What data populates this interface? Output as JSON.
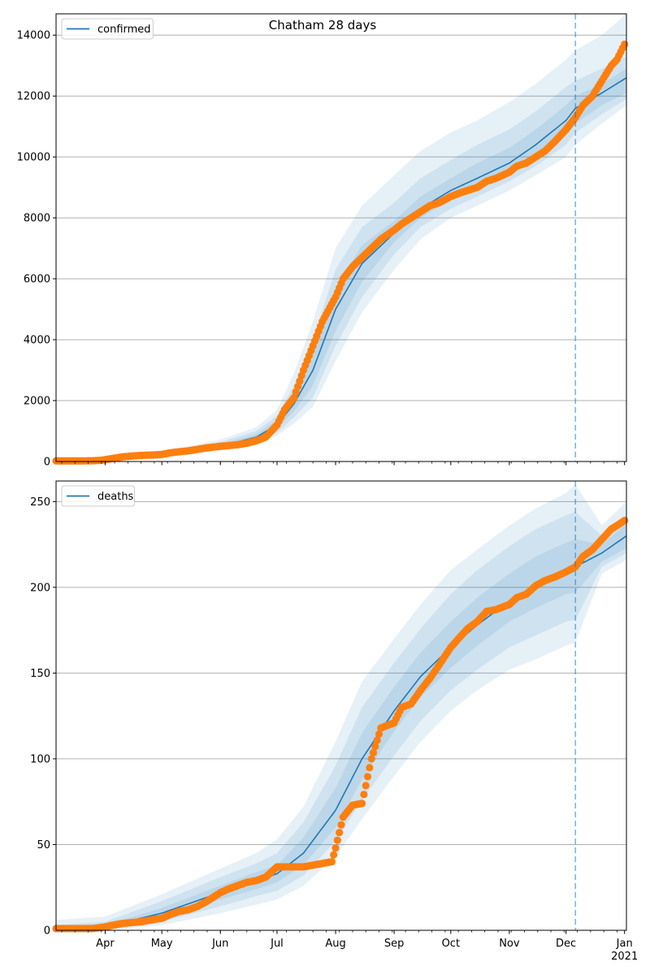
{
  "colors": {
    "model_line": "#1f77b4",
    "observed": "#ff7f0e",
    "band": "#1f77b4",
    "grid": "#b0b0b0",
    "forecast_marker": "#1f77b4"
  },
  "chart_data": [
    {
      "type": "line",
      "title": "Chatham 28 days",
      "legend": {
        "label": "confirmed",
        "position": "top-left"
      },
      "x_start": "2020-03-06",
      "x_end": "2021-01-02",
      "forecast_date": "2020-12-06",
      "ylim": [
        0,
        14700
      ],
      "yticks": [
        0,
        2000,
        4000,
        6000,
        8000,
        10000,
        12000,
        14000
      ],
      "grid": "y",
      "model": {
        "dates": [
          "2020-03-06",
          "2020-04-01",
          "2020-05-01",
          "2020-06-01",
          "2020-06-20",
          "2020-07-01",
          "2020-07-10",
          "2020-07-20",
          "2020-08-01",
          "2020-08-15",
          "2020-09-01",
          "2020-09-15",
          "2020-10-01",
          "2020-10-15",
          "2020-11-01",
          "2020-11-15",
          "2020-12-01",
          "2020-12-06",
          "2020-12-20",
          "2021-01-02"
        ],
        "median": [
          10,
          60,
          200,
          500,
          800,
          1200,
          1900,
          3000,
          5000,
          6500,
          7500,
          8300,
          8900,
          9300,
          9800,
          10400,
          11200,
          11600,
          12100,
          12600
        ],
        "band_inner": [
          [
            10,
            10
          ],
          [
            55,
            70
          ],
          [
            180,
            230
          ],
          [
            450,
            570
          ],
          [
            720,
            900
          ],
          [
            1080,
            1350
          ],
          [
            1650,
            2200
          ],
          [
            2500,
            3500
          ],
          [
            4300,
            5700
          ],
          [
            5900,
            7100
          ],
          [
            7200,
            7900
          ],
          [
            8000,
            8700
          ],
          [
            8600,
            9300
          ],
          [
            9000,
            9800
          ],
          [
            9500,
            10300
          ],
          [
            10000,
            10900
          ],
          [
            10700,
            11700
          ],
          [
            11100,
            12000
          ],
          [
            11700,
            12400
          ],
          [
            12100,
            12900
          ]
        ],
        "band_mid": [
          [
            5,
            15
          ],
          [
            50,
            80
          ],
          [
            160,
            260
          ],
          [
            400,
            640
          ],
          [
            650,
            1000
          ],
          [
            950,
            1500
          ],
          [
            1450,
            2500
          ],
          [
            2100,
            4000
          ],
          [
            3800,
            6300
          ],
          [
            5400,
            7700
          ],
          [
            6800,
            8500
          ],
          [
            7700,
            9300
          ],
          [
            8300,
            9900
          ],
          [
            8700,
            10400
          ],
          [
            9200,
            10900
          ],
          [
            9700,
            11500
          ],
          [
            10400,
            12300
          ],
          [
            10800,
            12500
          ],
          [
            11400,
            12900
          ],
          [
            11900,
            13300
          ]
        ],
        "band_outer": [
          [
            0,
            20
          ],
          [
            40,
            95
          ],
          [
            140,
            300
          ],
          [
            350,
            720
          ],
          [
            580,
            1120
          ],
          [
            850,
            1700
          ],
          [
            1250,
            2900
          ],
          [
            1800,
            4600
          ],
          [
            3300,
            7000
          ],
          [
            4900,
            8400
          ],
          [
            6300,
            9400
          ],
          [
            7300,
            10200
          ],
          [
            8000,
            10800
          ],
          [
            8400,
            11200
          ],
          [
            8900,
            11800
          ],
          [
            9400,
            12400
          ],
          [
            10000,
            13200
          ],
          [
            10400,
            13500
          ],
          [
            11100,
            14000
          ],
          [
            11700,
            14700
          ]
        ]
      },
      "observed": {
        "dates": [
          "2020-03-06",
          "2020-03-10",
          "2020-03-15",
          "2020-03-20",
          "2020-03-25",
          "2020-03-30",
          "2020-04-05",
          "2020-04-10",
          "2020-04-15",
          "2020-04-20",
          "2020-04-25",
          "2020-05-01",
          "2020-05-05",
          "2020-05-10",
          "2020-05-15",
          "2020-05-20",
          "2020-05-25",
          "2020-06-01",
          "2020-06-05",
          "2020-06-10",
          "2020-06-15",
          "2020-06-20",
          "2020-06-25",
          "2020-07-01",
          "2020-07-05",
          "2020-07-10",
          "2020-07-15",
          "2020-07-20",
          "2020-07-25",
          "2020-08-01",
          "2020-08-05",
          "2020-08-10",
          "2020-08-15",
          "2020-08-20",
          "2020-08-25",
          "2020-09-01",
          "2020-09-05",
          "2020-09-10",
          "2020-09-15",
          "2020-09-20",
          "2020-09-25",
          "2020-10-01",
          "2020-10-05",
          "2020-10-10",
          "2020-10-15",
          "2020-10-20",
          "2020-10-25",
          "2020-11-01",
          "2020-11-05",
          "2020-11-10",
          "2020-11-15",
          "2020-11-20",
          "2020-11-25",
          "2020-12-01",
          "2020-12-06",
          "2020-12-10",
          "2020-12-15",
          "2020-12-20",
          "2020-12-25",
          "2020-12-28",
          "2021-01-01"
        ],
        "values": [
          20,
          20,
          20,
          20,
          25,
          40,
          100,
          150,
          180,
          200,
          210,
          230,
          280,
          320,
          350,
          400,
          450,
          500,
          520,
          550,
          600,
          680,
          800,
          1200,
          1700,
          2100,
          3000,
          3800,
          4600,
          5400,
          6000,
          6400,
          6700,
          7000,
          7300,
          7600,
          7800,
          8000,
          8200,
          8400,
          8500,
          8700,
          8800,
          8900,
          9000,
          9200,
          9300,
          9500,
          9700,
          9800,
          10000,
          10200,
          10500,
          10900,
          11300,
          11700,
          12000,
          12500,
          13000,
          13200,
          13700
        ]
      }
    },
    {
      "type": "line",
      "title": "",
      "legend": {
        "label": "deaths",
        "position": "top-left"
      },
      "x_start": "2020-03-06",
      "x_end": "2021-01-02",
      "forecast_date": "2020-12-06",
      "ylim": [
        0,
        262
      ],
      "yticks": [
        0,
        50,
        100,
        150,
        200,
        250
      ],
      "grid": "y",
      "x_ticks": [
        {
          "date": "2020-04-01",
          "label": "Apr"
        },
        {
          "date": "2020-05-01",
          "label": "May"
        },
        {
          "date": "2020-06-01",
          "label": "Jun"
        },
        {
          "date": "2020-07-01",
          "label": "Jul"
        },
        {
          "date": "2020-08-01",
          "label": "Aug"
        },
        {
          "date": "2020-09-01",
          "label": "Sep"
        },
        {
          "date": "2020-10-01",
          "label": "Oct"
        },
        {
          "date": "2020-11-01",
          "label": "Nov"
        },
        {
          "date": "2020-12-01",
          "label": "Dec"
        },
        {
          "date": "2021-01-01",
          "label": "Jan",
          "sublabel": "2021"
        }
      ],
      "model": {
        "dates": [
          "2020-03-06",
          "2020-04-01",
          "2020-05-01",
          "2020-06-01",
          "2020-06-20",
          "2020-07-01",
          "2020-07-15",
          "2020-08-01",
          "2020-08-15",
          "2020-09-01",
          "2020-09-15",
          "2020-10-01",
          "2020-10-15",
          "2020-11-01",
          "2020-11-15",
          "2020-12-01",
          "2020-12-06",
          "2020-12-20",
          "2021-01-02"
        ],
        "median": [
          0,
          2,
          10,
          22,
          29,
          33,
          45,
          70,
          100,
          128,
          148,
          165,
          178,
          192,
          201,
          210,
          212,
          220,
          230
        ],
        "band_inner": [
          [
            0,
            1
          ],
          [
            1,
            3
          ],
          [
            7,
            13
          ],
          [
            18,
            26
          ],
          [
            24,
            34
          ],
          [
            28,
            38
          ],
          [
            38,
            54
          ],
          [
            60,
            83
          ],
          [
            88,
            115
          ],
          [
            116,
            142
          ],
          [
            136,
            162
          ],
          [
            153,
            180
          ],
          [
            166,
            194
          ],
          [
            180,
            208
          ],
          [
            188,
            218
          ],
          [
            196,
            226
          ],
          [
            197,
            228
          ],
          [
            215,
            225
          ],
          [
            223,
            237
          ]
        ],
        "band_mid": [
          [
            0,
            3
          ],
          [
            0,
            5
          ],
          [
            5,
            17
          ],
          [
            14,
            31
          ],
          [
            20,
            39
          ],
          [
            23,
            45
          ],
          [
            32,
            63
          ],
          [
            52,
            96
          ],
          [
            76,
            130
          ],
          [
            102,
            156
          ],
          [
            122,
            176
          ],
          [
            140,
            196
          ],
          [
            152,
            210
          ],
          [
            165,
            224
          ],
          [
            172,
            234
          ],
          [
            180,
            242
          ],
          [
            181,
            244
          ],
          [
            212,
            230
          ],
          [
            220,
            242
          ]
        ],
        "band_outer": [
          [
            0,
            6
          ],
          [
            0,
            8
          ],
          [
            3,
            21
          ],
          [
            10,
            36
          ],
          [
            15,
            45
          ],
          [
            18,
            53
          ],
          [
            26,
            72
          ],
          [
            43,
            110
          ],
          [
            65,
            145
          ],
          [
            90,
            170
          ],
          [
            110,
            190
          ],
          [
            128,
            210
          ],
          [
            140,
            222
          ],
          [
            152,
            236
          ],
          [
            158,
            246
          ],
          [
            166,
            255
          ],
          [
            168,
            260
          ],
          [
            208,
            236
          ],
          [
            216,
            250
          ]
        ]
      },
      "observed": {
        "dates": [
          "2020-03-06",
          "2020-03-15",
          "2020-03-25",
          "2020-04-01",
          "2020-04-05",
          "2020-04-10",
          "2020-04-20",
          "2020-04-25",
          "2020-05-01",
          "2020-05-05",
          "2020-05-10",
          "2020-05-15",
          "2020-05-20",
          "2020-05-25",
          "2020-06-01",
          "2020-06-05",
          "2020-06-10",
          "2020-06-15",
          "2020-06-20",
          "2020-06-25",
          "2020-07-01",
          "2020-07-05",
          "2020-07-10",
          "2020-07-15",
          "2020-07-20",
          "2020-07-25",
          "2020-07-30",
          "2020-08-01",
          "2020-08-05",
          "2020-08-10",
          "2020-08-15",
          "2020-08-20",
          "2020-08-25",
          "2020-09-01",
          "2020-09-05",
          "2020-09-10",
          "2020-09-15",
          "2020-09-20",
          "2020-09-25",
          "2020-10-01",
          "2020-10-05",
          "2020-10-10",
          "2020-10-15",
          "2020-10-20",
          "2020-10-25",
          "2020-11-01",
          "2020-11-05",
          "2020-11-10",
          "2020-11-15",
          "2020-11-20",
          "2020-11-25",
          "2020-12-01",
          "2020-12-06",
          "2020-12-10",
          "2020-12-15",
          "2020-12-20",
          "2020-12-25",
          "2020-12-28",
          "2021-01-01"
        ],
        "values": [
          1,
          1,
          1,
          2,
          3,
          4,
          5,
          6,
          7,
          9,
          11,
          12,
          14,
          17,
          22,
          24,
          26,
          28,
          29,
          31,
          37,
          37,
          37,
          37,
          38,
          39,
          40,
          48,
          66,
          73,
          74,
          100,
          118,
          121,
          130,
          132,
          140,
          147,
          155,
          165,
          170,
          176,
          180,
          186,
          187,
          190,
          194,
          196,
          201,
          204,
          206,
          209,
          212,
          218,
          222,
          228,
          234,
          236,
          239
        ]
      }
    }
  ]
}
